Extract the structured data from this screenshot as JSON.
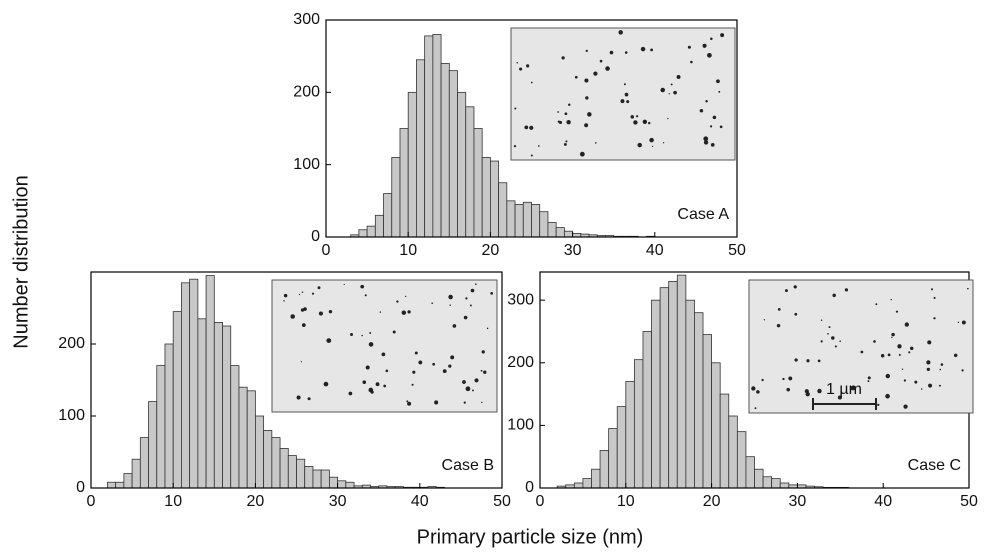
{
  "chart_data": [
    {
      "type": "histogram",
      "annotation": "Case A",
      "ylabel": "Number distribution",
      "xlabel": "Primary particle size (nm)",
      "bins": [
        3,
        4,
        5,
        6,
        7,
        8,
        9,
        10,
        11,
        12,
        13,
        14,
        15,
        16,
        17,
        18,
        19,
        20,
        21,
        22,
        23,
        24,
        25,
        26,
        27,
        28,
        29,
        30,
        31,
        32,
        33,
        34,
        35,
        36,
        37,
        38,
        39,
        40,
        41
      ],
      "values": [
        3,
        10,
        15,
        30,
        60,
        110,
        150,
        200,
        245,
        278,
        280,
        240,
        230,
        200,
        180,
        150,
        110,
        105,
        75,
        50,
        45,
        48,
        45,
        35,
        20,
        13,
        8,
        5,
        4,
        3,
        2,
        2,
        1,
        1,
        1,
        0,
        1,
        0
      ],
      "color": "#c8c8c8",
      "xlim": [
        0,
        50
      ],
      "xticks": [
        0,
        10,
        20,
        30,
        40,
        50
      ],
      "ylim": [
        0,
        300
      ],
      "yticks": [
        0,
        100,
        200,
        300
      ]
    },
    {
      "type": "histogram",
      "annotation": "Case B",
      "bins": [
        2,
        3,
        4,
        5,
        6,
        7,
        8,
        9,
        10,
        11,
        12,
        13,
        14,
        15,
        16,
        17,
        18,
        19,
        20,
        21,
        22,
        23,
        24,
        25,
        26,
        27,
        28,
        29,
        30,
        31,
        32,
        33,
        34,
        35,
        36,
        37,
        38,
        39,
        40,
        41,
        42,
        43
      ],
      "values": [
        8,
        8,
        20,
        40,
        70,
        120,
        170,
        200,
        245,
        285,
        290,
        235,
        295,
        230,
        225,
        170,
        140,
        135,
        100,
        80,
        70,
        55,
        45,
        40,
        30,
        25,
        25,
        15,
        10,
        8,
        3,
        4,
        2,
        3,
        2,
        2,
        1,
        1,
        1,
        2,
        1
      ],
      "color": "#c8c8c8",
      "xlim": [
        0,
        50
      ],
      "xticks": [
        0,
        10,
        20,
        30,
        40,
        50
      ],
      "ylim": [
        0,
        300
      ],
      "yticks": [
        0,
        100,
        200
      ]
    },
    {
      "type": "histogram",
      "annotation": "Case C",
      "scale_bar_label": "1 µm",
      "bins": [
        2,
        3,
        4,
        5,
        6,
        7,
        8,
        9,
        10,
        11,
        12,
        13,
        14,
        15,
        16,
        17,
        18,
        19,
        20,
        21,
        22,
        23,
        24,
        25,
        26,
        27,
        28,
        29,
        30,
        31,
        32,
        33,
        34,
        35,
        36
      ],
      "values": [
        3,
        5,
        8,
        15,
        30,
        60,
        95,
        130,
        170,
        205,
        250,
        300,
        320,
        330,
        340,
        300,
        280,
        245,
        200,
        150,
        115,
        90,
        50,
        30,
        18,
        15,
        8,
        5,
        5,
        3,
        2,
        1,
        1,
        1
      ],
      "color": "#c8c8c8",
      "xlim": [
        0,
        50
      ],
      "xticks": [
        0,
        10,
        20,
        30,
        40,
        50
      ],
      "ylim": [
        0,
        345
      ],
      "yticks": [
        0,
        100,
        200,
        300
      ]
    }
  ]
}
